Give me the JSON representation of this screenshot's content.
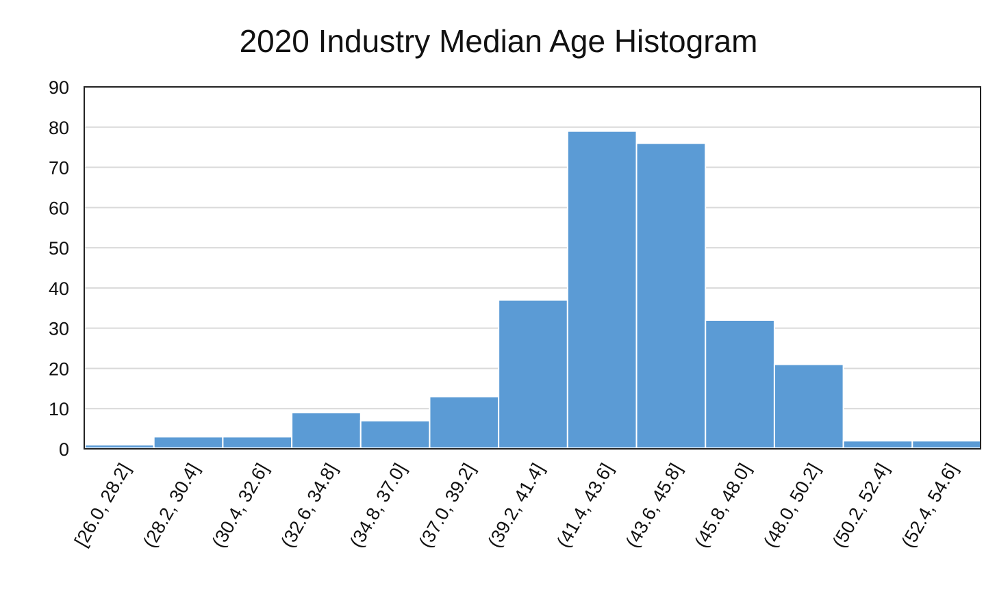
{
  "chart_data": {
    "type": "bar",
    "title": "2020 Industry Median Age Histogram",
    "xlabel": "",
    "ylabel": "",
    "categories": [
      "[26.0, 28.2]",
      "(28.2, 30.4]",
      "(30.4, 32.6]",
      "(32.6, 34.8]",
      "(34.8, 37.0]",
      "(37.0, 39.2]",
      "(39.2, 41.4]",
      "(41.4, 43.6]",
      "(43.6, 45.8]",
      "(45.8, 48.0]",
      "(48.0, 50.2]",
      "(50.2, 52.4]",
      "(52.4, 54.6]"
    ],
    "values": [
      1,
      3,
      3,
      9,
      7,
      13,
      37,
      79,
      76,
      32,
      21,
      2,
      2
    ],
    "ylim": [
      0,
      90
    ],
    "yticks": [
      "0",
      "10",
      "20",
      "30",
      "40",
      "50",
      "60",
      "70",
      "80",
      "90"
    ],
    "grid": true,
    "legend": "none",
    "bar_color": "#5b9bd5"
  }
}
